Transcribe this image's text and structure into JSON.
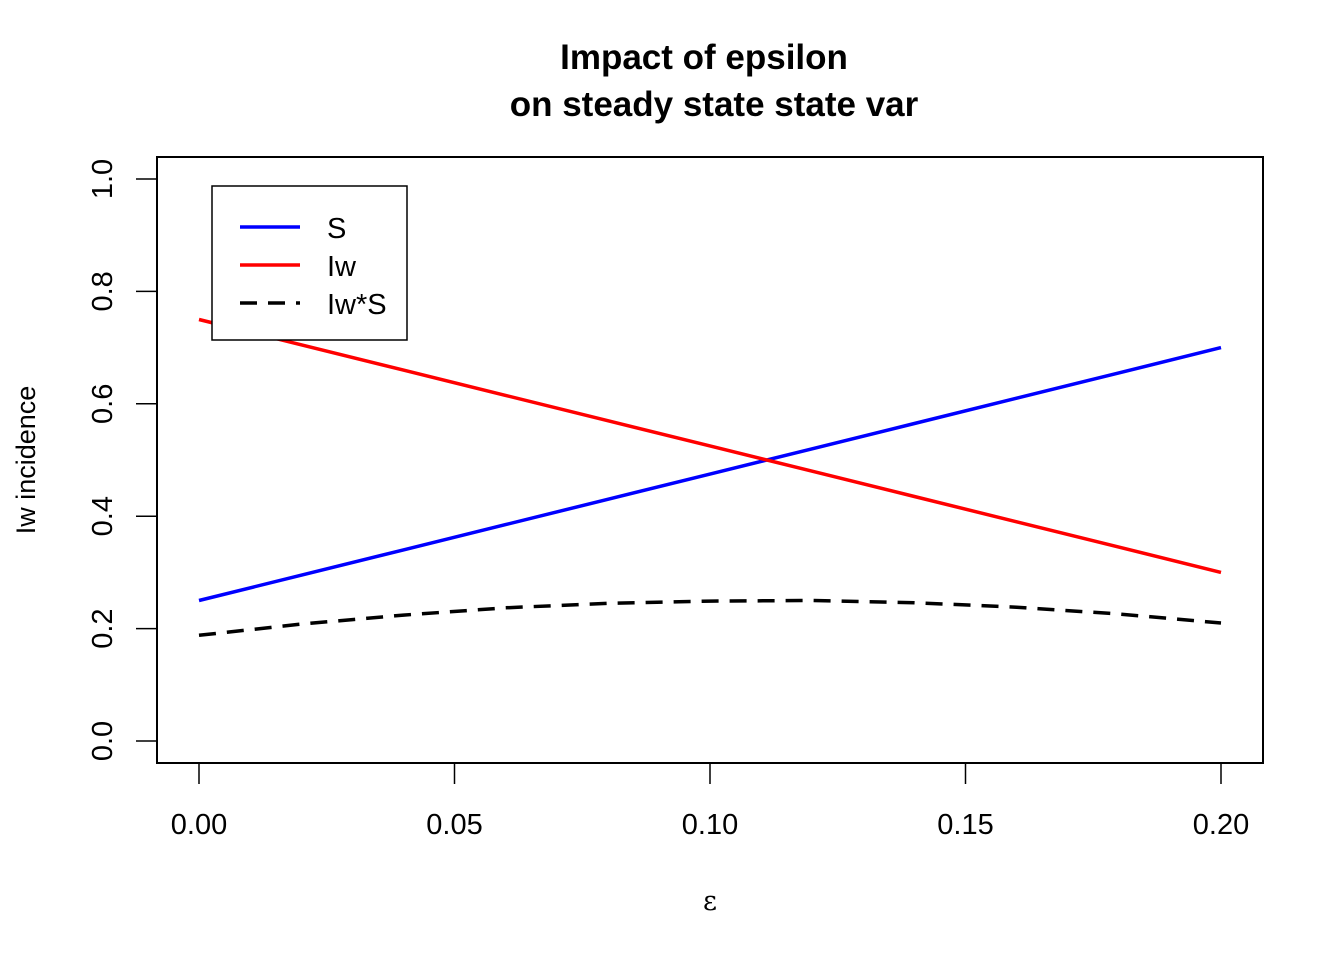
{
  "chart_data": {
    "type": "line",
    "title": [
      "Impact of epsilon",
      "on steady state state var"
    ],
    "xlabel": "ε",
    "ylabel": "Iw incidence",
    "xlim": [
      0.0,
      0.2
    ],
    "ylim": [
      0.0,
      1.0
    ],
    "x_ticks": [
      "0.00",
      "0.05",
      "0.10",
      "0.15",
      "0.20"
    ],
    "y_ticks": [
      "0.0",
      "0.2",
      "0.4",
      "0.6",
      "0.8",
      "1.0"
    ],
    "grid": false,
    "legend_position": "top-left",
    "x": [
      0.0,
      0.02,
      0.04,
      0.06,
      0.08,
      0.1,
      0.12,
      0.14,
      0.16,
      0.18,
      0.2
    ],
    "series": [
      {
        "name": "S",
        "color": "#0000ff",
        "dash": "solid",
        "values": [
          0.25,
          0.295,
          0.34,
          0.385,
          0.43,
          0.475,
          0.52,
          0.565,
          0.61,
          0.655,
          0.7
        ]
      },
      {
        "name": "Iw",
        "color": "#ff0000",
        "dash": "solid",
        "values": [
          0.75,
          0.705,
          0.66,
          0.615,
          0.57,
          0.525,
          0.48,
          0.435,
          0.39,
          0.345,
          0.3
        ]
      },
      {
        "name": "Iw*S",
        "color": "#000000",
        "dash": "dashed",
        "values": [
          0.188,
          0.208,
          0.224,
          0.237,
          0.245,
          0.249,
          0.25,
          0.246,
          0.238,
          0.226,
          0.21
        ]
      }
    ]
  }
}
